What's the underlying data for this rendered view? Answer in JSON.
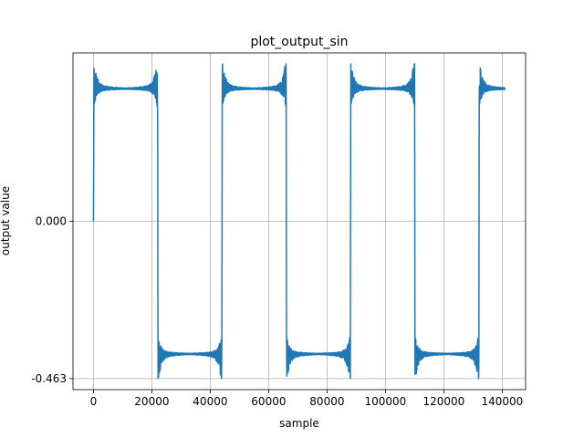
{
  "chart_data": {
    "type": "line",
    "title": "plot_output_sin",
    "xlabel": "sample",
    "ylabel": "output value",
    "xlim": [
      -7000,
      148000
    ],
    "ylim": [
      -0.463,
      0.463
    ],
    "ylim_view": [
      -0.4955,
      0.4955
    ],
    "grid": true,
    "series_color": "#1f77b4",
    "x_ticks": [
      0,
      20000,
      40000,
      60000,
      80000,
      100000,
      120000,
      140000
    ],
    "x_tick_labels": [
      "0",
      "20000",
      "40000",
      "60000",
      "80000",
      "100000",
      "120000",
      "140000"
    ],
    "y_ticks": [
      0.0,
      -0.463
    ],
    "y_tick_labels": [
      "0.000",
      "-0.463"
    ],
    "series": [
      {
        "description": "square wave with ringing (Gibbs) at transitions",
        "high_level": 0.39,
        "low_level": -0.39,
        "peak_overshoot": 0.463,
        "transitions_x": [
          0,
          22000,
          44000,
          66000,
          88000,
          110000,
          132000
        ],
        "x_start": 0,
        "x_end": 141000,
        "values_summary": [
          [
            0,
            0.0
          ],
          [
            500,
            0.46
          ],
          [
            3000,
            0.39
          ],
          [
            21500,
            0.46
          ],
          [
            22000,
            0.0
          ],
          [
            22500,
            -0.46
          ],
          [
            25000,
            -0.39
          ],
          [
            43500,
            -0.46
          ],
          [
            44000,
            0.0
          ],
          [
            44500,
            0.46
          ],
          [
            47000,
            0.39
          ],
          [
            65500,
            0.46
          ],
          [
            66000,
            0.0
          ],
          [
            66500,
            -0.46
          ],
          [
            69000,
            -0.39
          ],
          [
            87500,
            -0.46
          ],
          [
            88000,
            0.0
          ],
          [
            88500,
            0.46
          ],
          [
            91000,
            0.39
          ],
          [
            109500,
            0.46
          ],
          [
            110000,
            0.0
          ],
          [
            110500,
            -0.46
          ],
          [
            113000,
            -0.39
          ],
          [
            131500,
            -0.46
          ],
          [
            132000,
            0.0
          ],
          [
            132500,
            0.46
          ],
          [
            135000,
            0.39
          ],
          [
            141000,
            0.39
          ]
        ]
      }
    ]
  }
}
